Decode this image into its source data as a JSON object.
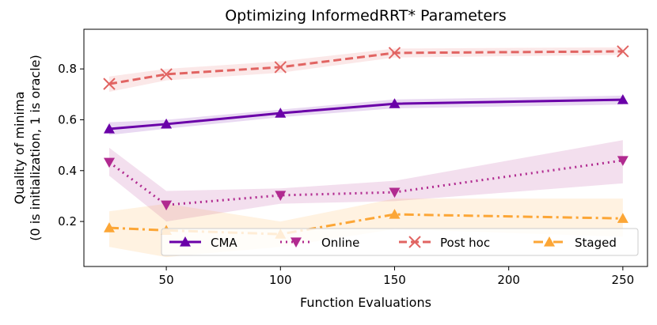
{
  "chart_data": {
    "type": "line",
    "title": "Optimizing InformedRRT* Parameters",
    "x_label": "Function Evaluations",
    "y_label": [
      "Quality of minima",
      "(0 is initialization, 1 is oracle)"
    ],
    "x": [
      25,
      50,
      100,
      150,
      250
    ],
    "xlim": [
      13.9,
      260.8
    ],
    "ylim": [
      0.023,
      0.956
    ],
    "xticks": [
      50,
      100,
      150,
      200,
      250
    ],
    "yticks": [
      0.2,
      0.4,
      0.6,
      0.8
    ],
    "legend": "lower right",
    "series": [
      {
        "name": "CMA",
        "color": "#6a00a8",
        "marker": "triangle-up",
        "dash": "solid",
        "values": [
          0.564,
          0.583,
          0.626,
          0.663,
          0.679
        ],
        "lower": [
          0.54,
          0.565,
          0.61,
          0.645,
          0.66
        ],
        "upper": [
          0.59,
          0.6,
          0.64,
          0.68,
          0.695
        ]
      },
      {
        "name": "Online",
        "color": "#b12a90",
        "marker": "triangle-down",
        "dash": "dotted",
        "values": [
          0.433,
          0.265,
          0.303,
          0.315,
          0.44
        ],
        "lower": [
          0.38,
          0.2,
          0.27,
          0.28,
          0.35
        ],
        "upper": [
          0.49,
          0.32,
          0.33,
          0.36,
          0.52
        ]
      },
      {
        "name": "Post hoc",
        "color": "#e16462",
        "marker": "x",
        "dash": "dashed",
        "values": [
          0.741,
          0.779,
          0.807,
          0.863,
          0.869
        ],
        "lower": [
          0.71,
          0.755,
          0.785,
          0.845,
          0.855
        ],
        "upper": [
          0.77,
          0.8,
          0.83,
          0.88,
          0.885
        ]
      },
      {
        "name": "Staged",
        "color": "#fca636",
        "marker": "triangle-up",
        "dash": "dashdot",
        "values": [
          0.175,
          0.165,
          0.15,
          0.228,
          0.212
        ],
        "lower": [
          0.1,
          0.06,
          0.1,
          0.17,
          0.14
        ],
        "upper": [
          0.24,
          0.27,
          0.2,
          0.29,
          0.29
        ]
      }
    ]
  }
}
